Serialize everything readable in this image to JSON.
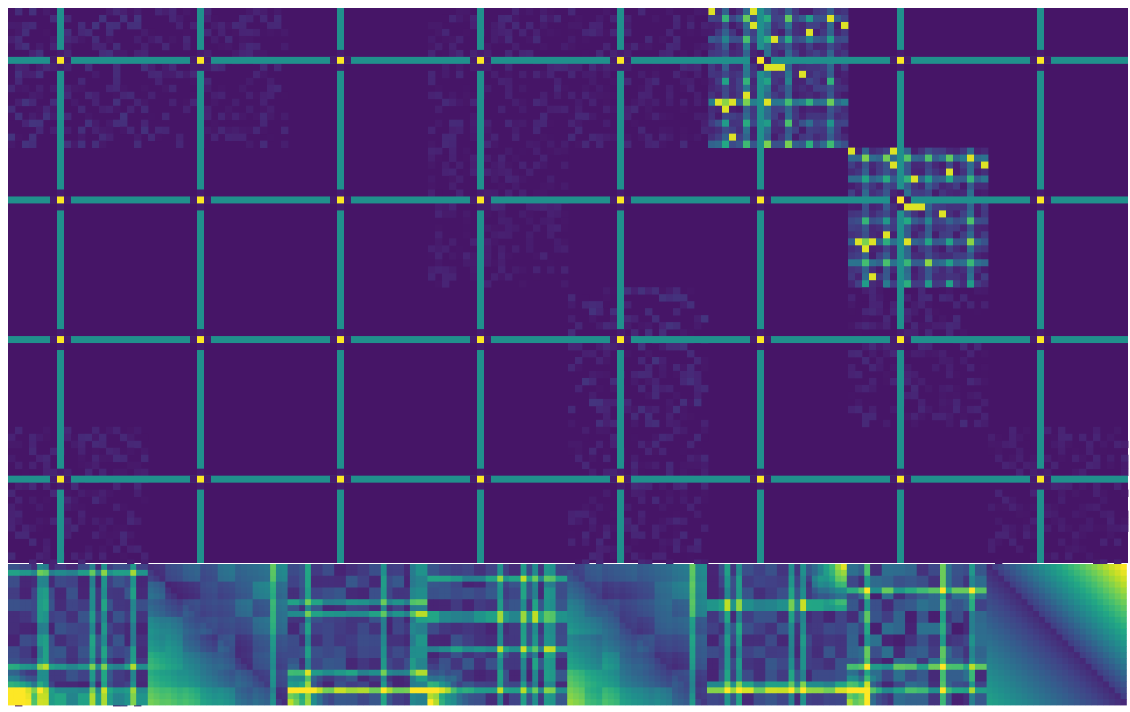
{
  "chart_data": {
    "type": "heatmap",
    "title": "",
    "xlabel": "",
    "ylabel": "",
    "colormap": "viridis",
    "value_range": [
      0,
      1
    ],
    "grid": false,
    "legend": "none",
    "axes": "off",
    "grid_cells": [
      8,
      5
    ],
    "block_size": 20,
    "background_value": 0.06,
    "stripe_value": 0.5,
    "stripe_peak_value": 1.0,
    "stripe_index_in_block": 7,
    "dense_blocks": [
      {
        "block_row": 0,
        "block_col": 5,
        "mean_value": 0.3
      },
      {
        "block_row": 1,
        "block_col": 6,
        "mean_value": 0.3
      }
    ],
    "faint_blocks": [
      {
        "block_row": 0,
        "block_col": 0,
        "mean_value": 0.12
      },
      {
        "block_row": 0,
        "block_col": 1,
        "mean_value": 0.1
      },
      {
        "block_row": 0,
        "block_col": 3,
        "mean_value": 0.1
      },
      {
        "block_row": 0,
        "block_col": 4,
        "mean_value": 0.1
      },
      {
        "block_row": 1,
        "block_col": 3,
        "mean_value": 0.09
      },
      {
        "block_row": 2,
        "block_col": 4,
        "mean_value": 0.12
      },
      {
        "block_row": 2,
        "block_col": 6,
        "mean_value": 0.1
      },
      {
        "block_row": 3,
        "block_col": 0,
        "mean_value": 0.1
      },
      {
        "block_row": 3,
        "block_col": 4,
        "mean_value": 0.1
      },
      {
        "block_row": 3,
        "block_col": 7,
        "mean_value": 0.09
      },
      {
        "block_row": 4,
        "block_col": 0,
        "mean_value": 0.12
      }
    ],
    "bottom_tiles": [
      {
        "index": 1,
        "pattern": "plaid",
        "hot_corner": "bottom-left"
      },
      {
        "index": 2,
        "pattern": "diagonal-gradient",
        "hot_corner": "bottom-left"
      },
      {
        "index": 3,
        "pattern": "plaid",
        "hot_corner": "bottom-left"
      },
      {
        "index": 4,
        "pattern": "plaid",
        "hot_corner": "bottom-left"
      },
      {
        "index": 5,
        "pattern": "diagonal-gradient",
        "hot_corner": "bottom-left"
      },
      {
        "index": 6,
        "pattern": "plaid",
        "hot_corner": "top-right"
      },
      {
        "index": 7,
        "pattern": "cross-stripes",
        "hot_corner": "bottom-left"
      },
      {
        "index": 8,
        "pattern": "diagonal-gradient",
        "hot_corner": "top-right"
      }
    ]
  }
}
